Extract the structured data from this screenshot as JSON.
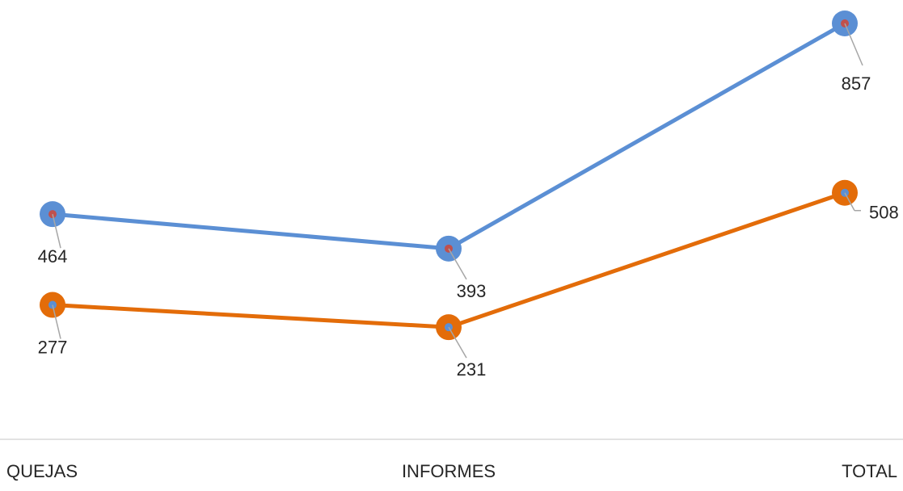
{
  "chart_data": {
    "type": "line",
    "categories": [
      "QUEJAS",
      "INFORMES",
      "TOTAL"
    ],
    "series": [
      {
        "values": [
          464,
          393,
          857
        ]
      },
      {
        "values": [
          277,
          231,
          508
        ]
      }
    ],
    "data_labels": true,
    "ylim": [
      0,
      900
    ],
    "grid": false,
    "legend": "none"
  },
  "colors": {
    "series_1_line": "#5B8FD4",
    "series_1_marker_dot": "#C0504D",
    "series_2_line": "#E36C09",
    "series_2_marker_dot": "#5B8FD4",
    "axis": "#D9D9D9",
    "leader": "#A6A6A6",
    "text": "#262626"
  }
}
